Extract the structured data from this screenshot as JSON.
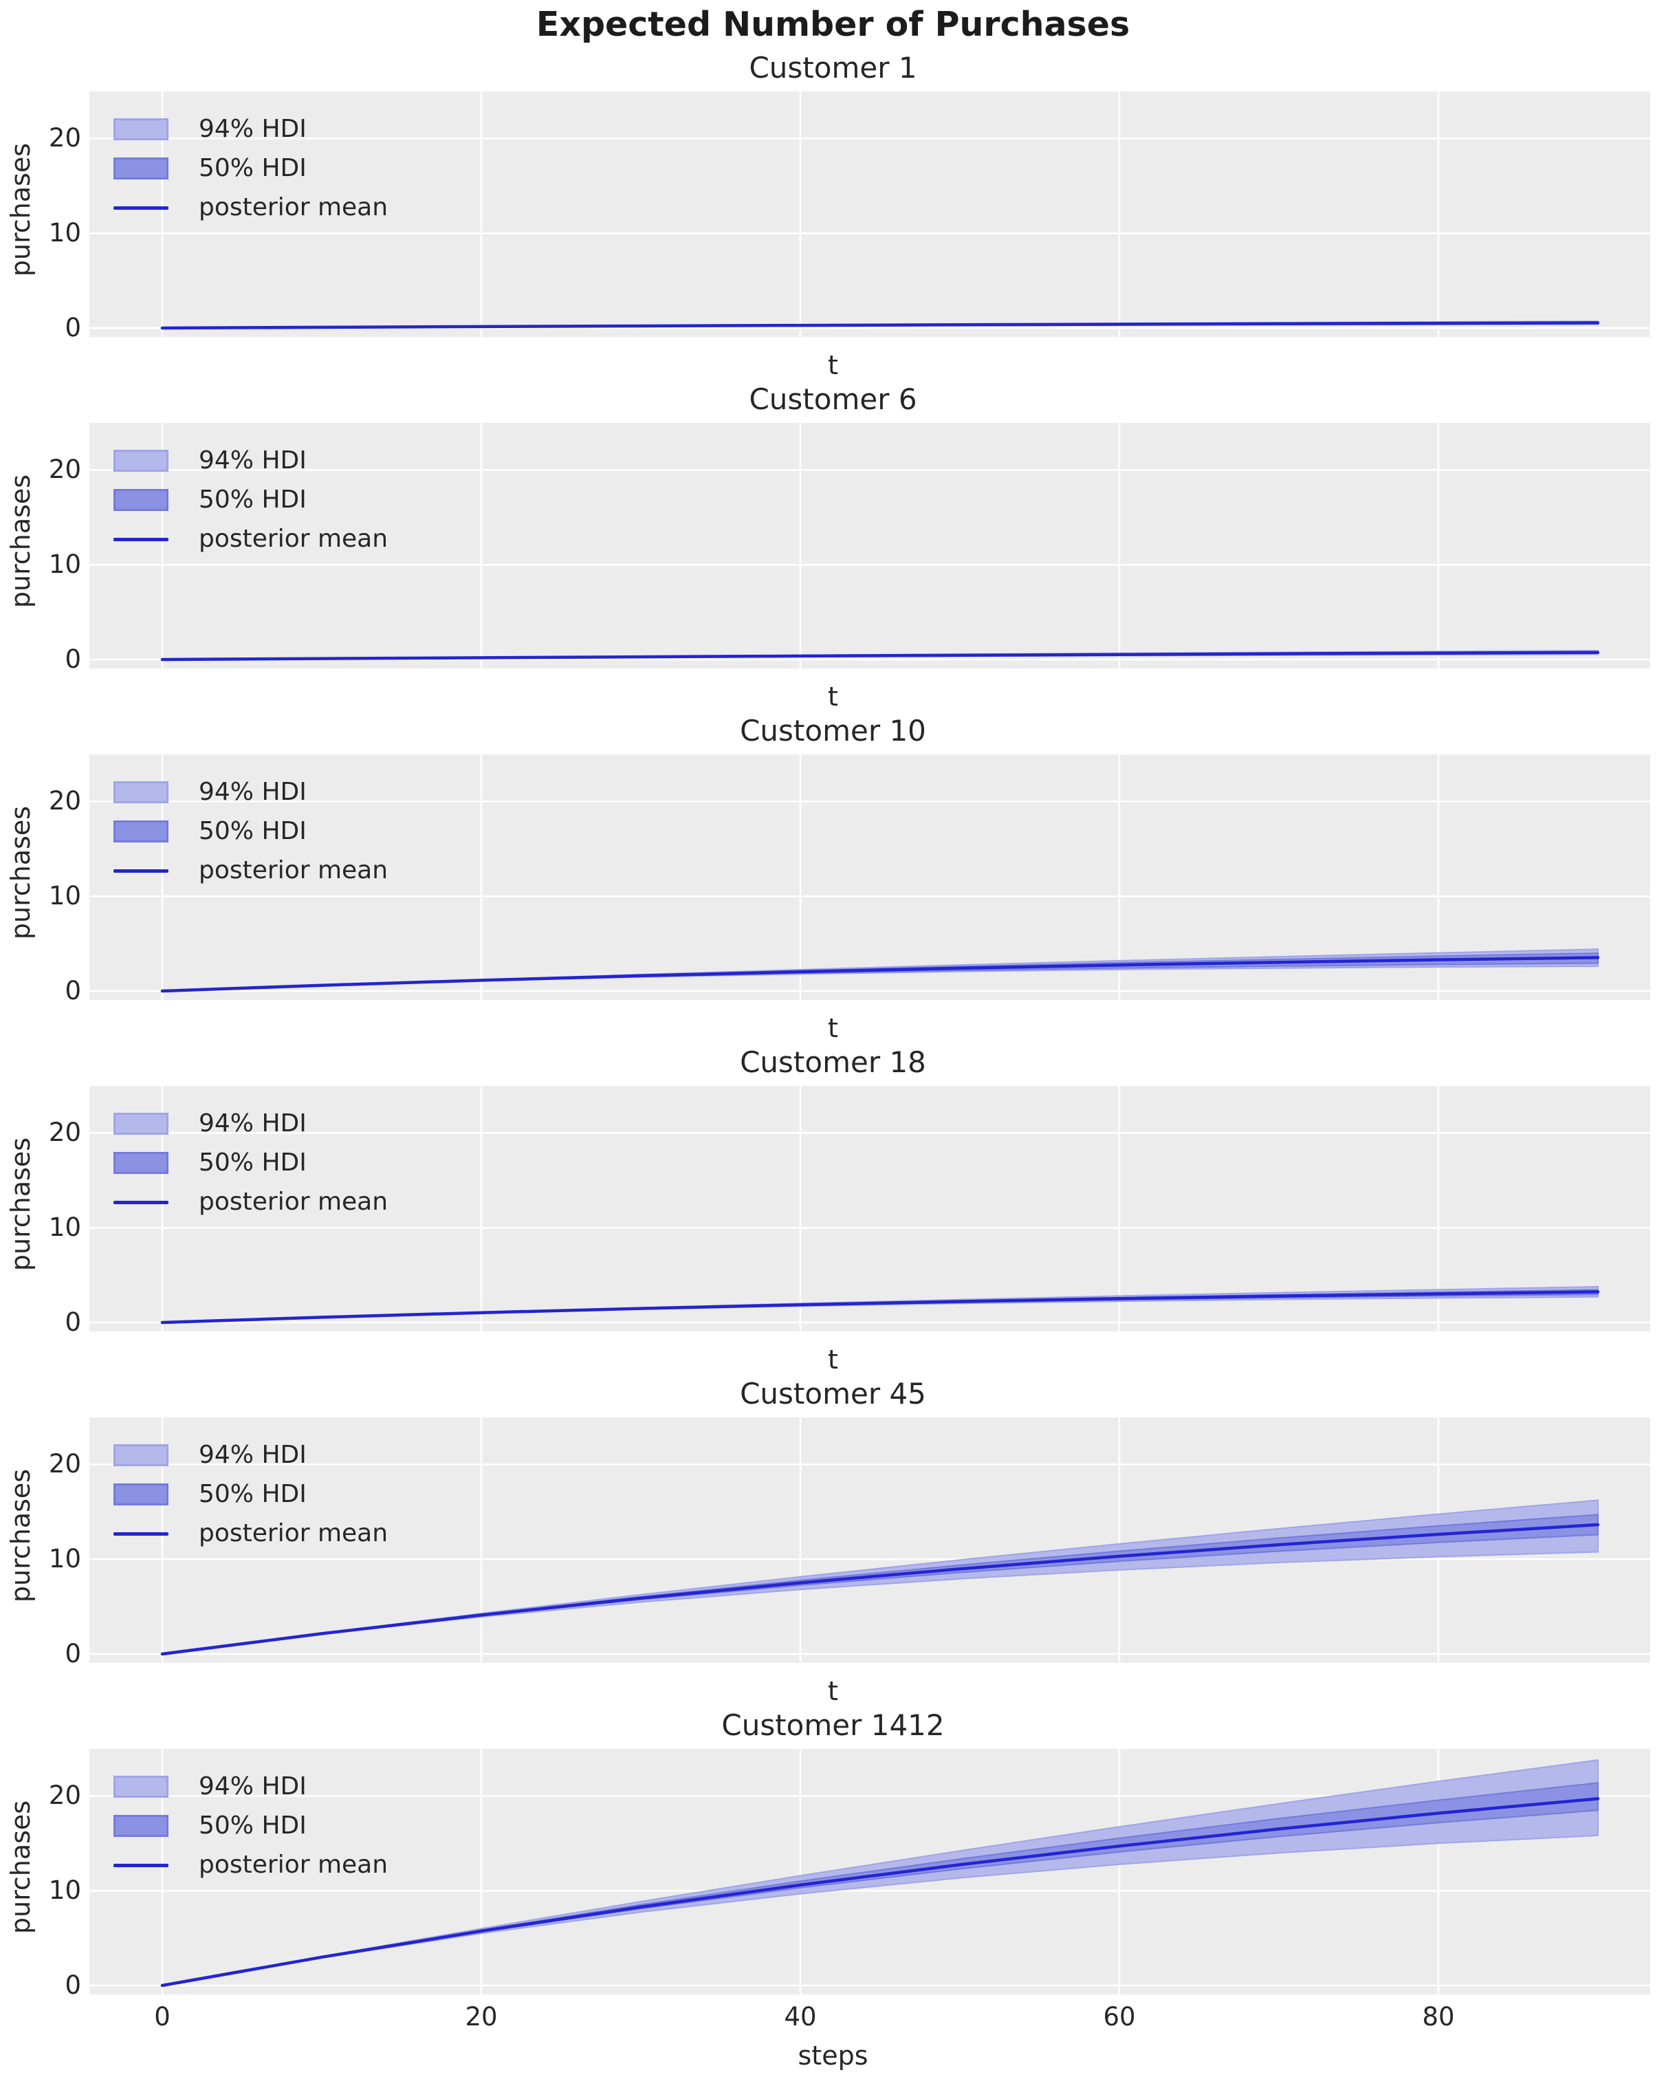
{
  "figure": {
    "title": "Expected Number of Purchases"
  },
  "colors": {
    "plot_bg": "#ececec",
    "grid": "#ffffff",
    "hdi94_fill": "#b4b8eb",
    "hdi94_edge": "#9fa5e6",
    "hdi50_fill": "#8c92e3",
    "hdi50_edge": "#737bdc",
    "mean_line": "#2424d1",
    "text": "#262626",
    "title_text": "#1c1c1c"
  },
  "legend_labels": [
    "94% HDI",
    "50% HDI",
    "posterior mean"
  ],
  "chart_data": [
    {
      "type": "line",
      "title": "Customer 1",
      "xlabel": "t",
      "ylabel": "purchases",
      "legend": [
        "94% HDI",
        "50% HDI",
        "posterior mean"
      ],
      "x": [
        0,
        10,
        20,
        30,
        40,
        50,
        60,
        70,
        80,
        90
      ],
      "xticks": [
        0,
        20,
        40,
        60,
        80
      ],
      "yticks": [
        0,
        10,
        20
      ],
      "yticklabels": [
        "0",
        "10",
        "20"
      ],
      "ylim": [
        -1,
        25
      ],
      "xlim": [
        -4.6,
        94.6
      ],
      "series": {
        "posterior_mean": [
          0,
          0.08,
          0.15,
          0.22,
          0.28,
          0.34,
          0.4,
          0.45,
          0.5,
          0.55
        ],
        "hdi_94_lower": [
          0,
          0.06,
          0.12,
          0.17,
          0.22,
          0.26,
          0.3,
          0.34,
          0.37,
          0.4
        ],
        "hdi_94_upper": [
          0,
          0.1,
          0.19,
          0.28,
          0.36,
          0.44,
          0.51,
          0.58,
          0.65,
          0.72
        ],
        "hdi_50_lower": [
          0,
          0.07,
          0.14,
          0.2,
          0.25,
          0.31,
          0.36,
          0.4,
          0.45,
          0.49
        ],
        "hdi_50_upper": [
          0,
          0.09,
          0.17,
          0.24,
          0.31,
          0.37,
          0.44,
          0.49,
          0.55,
          0.61
        ]
      }
    },
    {
      "type": "line",
      "title": "Customer 6",
      "xlabel": "t",
      "ylabel": "purchases",
      "legend": [
        "94% HDI",
        "50% HDI",
        "posterior mean"
      ],
      "x": [
        0,
        10,
        20,
        30,
        40,
        50,
        60,
        70,
        80,
        90
      ],
      "xticks": [
        0,
        20,
        40,
        60,
        80
      ],
      "yticks": [
        0,
        10,
        20
      ],
      "yticklabels": [
        "0",
        "10",
        "20"
      ],
      "ylim": [
        -1,
        25
      ],
      "xlim": [
        -4.6,
        94.6
      ],
      "series": {
        "posterior_mean": [
          0,
          0.1,
          0.19,
          0.28,
          0.37,
          0.45,
          0.53,
          0.61,
          0.68,
          0.75
        ],
        "hdi_94_lower": [
          0,
          0.08,
          0.15,
          0.22,
          0.29,
          0.35,
          0.41,
          0.46,
          0.51,
          0.56
        ],
        "hdi_94_upper": [
          0,
          0.12,
          0.24,
          0.35,
          0.46,
          0.56,
          0.66,
          0.76,
          0.85,
          0.94
        ],
        "hdi_50_lower": [
          0,
          0.09,
          0.17,
          0.25,
          0.33,
          0.4,
          0.47,
          0.54,
          0.6,
          0.66
        ],
        "hdi_50_upper": [
          0,
          0.11,
          0.21,
          0.31,
          0.41,
          0.5,
          0.58,
          0.67,
          0.75,
          0.83
        ]
      }
    },
    {
      "type": "line",
      "title": "Customer 10",
      "xlabel": "t",
      "ylabel": "purchases",
      "legend": [
        "94% HDI",
        "50% HDI",
        "posterior mean"
      ],
      "x": [
        0,
        10,
        20,
        30,
        40,
        50,
        60,
        70,
        80,
        90
      ],
      "xticks": [
        0,
        20,
        40,
        60,
        80
      ],
      "yticks": [
        0,
        10,
        20
      ],
      "yticklabels": [
        "0",
        "10",
        "20"
      ],
      "ylim": [
        -1,
        25
      ],
      "xlim": [
        -4.6,
        94.6
      ],
      "series": {
        "posterior_mean": [
          0,
          0.6,
          1.13,
          1.61,
          2.03,
          2.41,
          2.74,
          3.03,
          3.3,
          3.53
        ],
        "hdi_94_lower": [
          0,
          0.58,
          1.06,
          1.47,
          1.79,
          2.06,
          2.27,
          2.42,
          2.54,
          2.61
        ],
        "hdi_94_upper": [
          0,
          0.62,
          1.19,
          1.74,
          2.26,
          2.75,
          3.2,
          3.62,
          4.03,
          4.41
        ],
        "hdi_50_lower": [
          0,
          0.59,
          1.09,
          1.52,
          1.88,
          2.18,
          2.43,
          2.63,
          2.8,
          2.93
        ],
        "hdi_50_upper": [
          0,
          0.61,
          1.16,
          1.68,
          2.15,
          2.58,
          2.98,
          3.34,
          3.68,
          3.99
        ]
      }
    },
    {
      "type": "line",
      "title": "Customer 18",
      "xlabel": "t",
      "ylabel": "purchases",
      "legend": [
        "94% HDI",
        "50% HDI",
        "posterior mean"
      ],
      "x": [
        0,
        10,
        20,
        30,
        40,
        50,
        60,
        70,
        80,
        90
      ],
      "xticks": [
        0,
        20,
        40,
        60,
        80
      ],
      "yticks": [
        0,
        10,
        20
      ],
      "yticklabels": [
        "0",
        "10",
        "20"
      ],
      "ylim": [
        -1,
        25
      ],
      "xlim": [
        -4.6,
        94.6
      ],
      "series": {
        "posterior_mean": [
          0,
          0.55,
          1.04,
          1.48,
          1.87,
          2.21,
          2.52,
          2.79,
          3.02,
          3.24
        ],
        "hdi_94_lower": [
          0,
          0.54,
          1.0,
          1.4,
          1.73,
          2.01,
          2.24,
          2.43,
          2.58,
          2.7
        ],
        "hdi_94_upper": [
          0,
          0.56,
          1.08,
          1.56,
          2.01,
          2.42,
          2.8,
          3.15,
          3.47,
          3.78
        ],
        "hdi_50_lower": [
          0,
          0.54,
          1.02,
          1.44,
          1.8,
          2.11,
          2.38,
          2.61,
          2.8,
          2.95
        ],
        "hdi_50_upper": [
          0,
          0.56,
          1.06,
          1.52,
          1.93,
          2.3,
          2.63,
          2.93,
          3.2,
          3.45
        ]
      }
    },
    {
      "type": "line",
      "title": "Customer 45",
      "xlabel": "t",
      "ylabel": "purchases",
      "legend": [
        "94% HDI",
        "50% HDI",
        "posterior mean"
      ],
      "x": [
        0,
        10,
        20,
        30,
        40,
        50,
        60,
        70,
        80,
        90
      ],
      "xticks": [
        0,
        20,
        40,
        60,
        80
      ],
      "yticks": [
        0,
        10,
        20
      ],
      "yticklabels": [
        "0",
        "10",
        "20"
      ],
      "ylim": [
        -1,
        25
      ],
      "xlim": [
        -4.6,
        94.6
      ],
      "series": {
        "posterior_mean": [
          0,
          2.15,
          4.11,
          5.89,
          7.51,
          8.98,
          10.31,
          11.53,
          12.63,
          13.64
        ],
        "hdi_94_lower": [
          0,
          2.1,
          3.92,
          5.48,
          6.81,
          7.93,
          8.87,
          9.65,
          10.27,
          10.78
        ],
        "hdi_94_upper": [
          0,
          2.2,
          4.28,
          6.26,
          8.14,
          9.93,
          11.62,
          13.23,
          14.76,
          16.23
        ],
        "hdi_50_lower": [
          0,
          2.13,
          4.04,
          5.74,
          7.26,
          8.6,
          9.79,
          10.85,
          11.78,
          12.6
        ],
        "hdi_50_upper": [
          0,
          2.17,
          4.18,
          6.04,
          7.77,
          9.37,
          10.85,
          12.23,
          13.51,
          14.7
        ]
      }
    },
    {
      "type": "line",
      "title": "Customer 1412",
      "xlabel": "steps",
      "ylabel": "purchases",
      "legend": [
        "94% HDI",
        "50% HDI",
        "posterior mean"
      ],
      "x": [
        0,
        10,
        20,
        30,
        40,
        50,
        60,
        70,
        80,
        90
      ],
      "xticks": [
        0,
        20,
        40,
        60,
        80
      ],
      "xticklabels": [
        "0",
        "20",
        "40",
        "60",
        "80"
      ],
      "yticks": [
        0,
        10,
        20
      ],
      "yticklabels": [
        "0",
        "10",
        "20"
      ],
      "ylim": [
        -1,
        25
      ],
      "xlim": [
        -4.6,
        94.6
      ],
      "series": {
        "posterior_mean": [
          0,
          2.99,
          5.74,
          8.28,
          10.6,
          12.74,
          14.71,
          16.52,
          18.18,
          19.71
        ],
        "hdi_94_lower": [
          0,
          2.92,
          5.49,
          7.74,
          9.67,
          11.35,
          12.78,
          13.99,
          15.0,
          15.83
        ],
        "hdi_94_upper": [
          0,
          3.06,
          6.0,
          8.85,
          11.58,
          14.21,
          16.74,
          19.18,
          21.53,
          23.79
        ],
        "hdi_50_lower": [
          0,
          2.97,
          5.66,
          8.11,
          10.31,
          12.3,
          14.1,
          15.72,
          17.18,
          18.49
        ],
        "hdi_50_upper": [
          0,
          3.02,
          5.85,
          8.52,
          11.0,
          13.34,
          15.54,
          17.61,
          19.55,
          21.38
        ]
      }
    }
  ]
}
